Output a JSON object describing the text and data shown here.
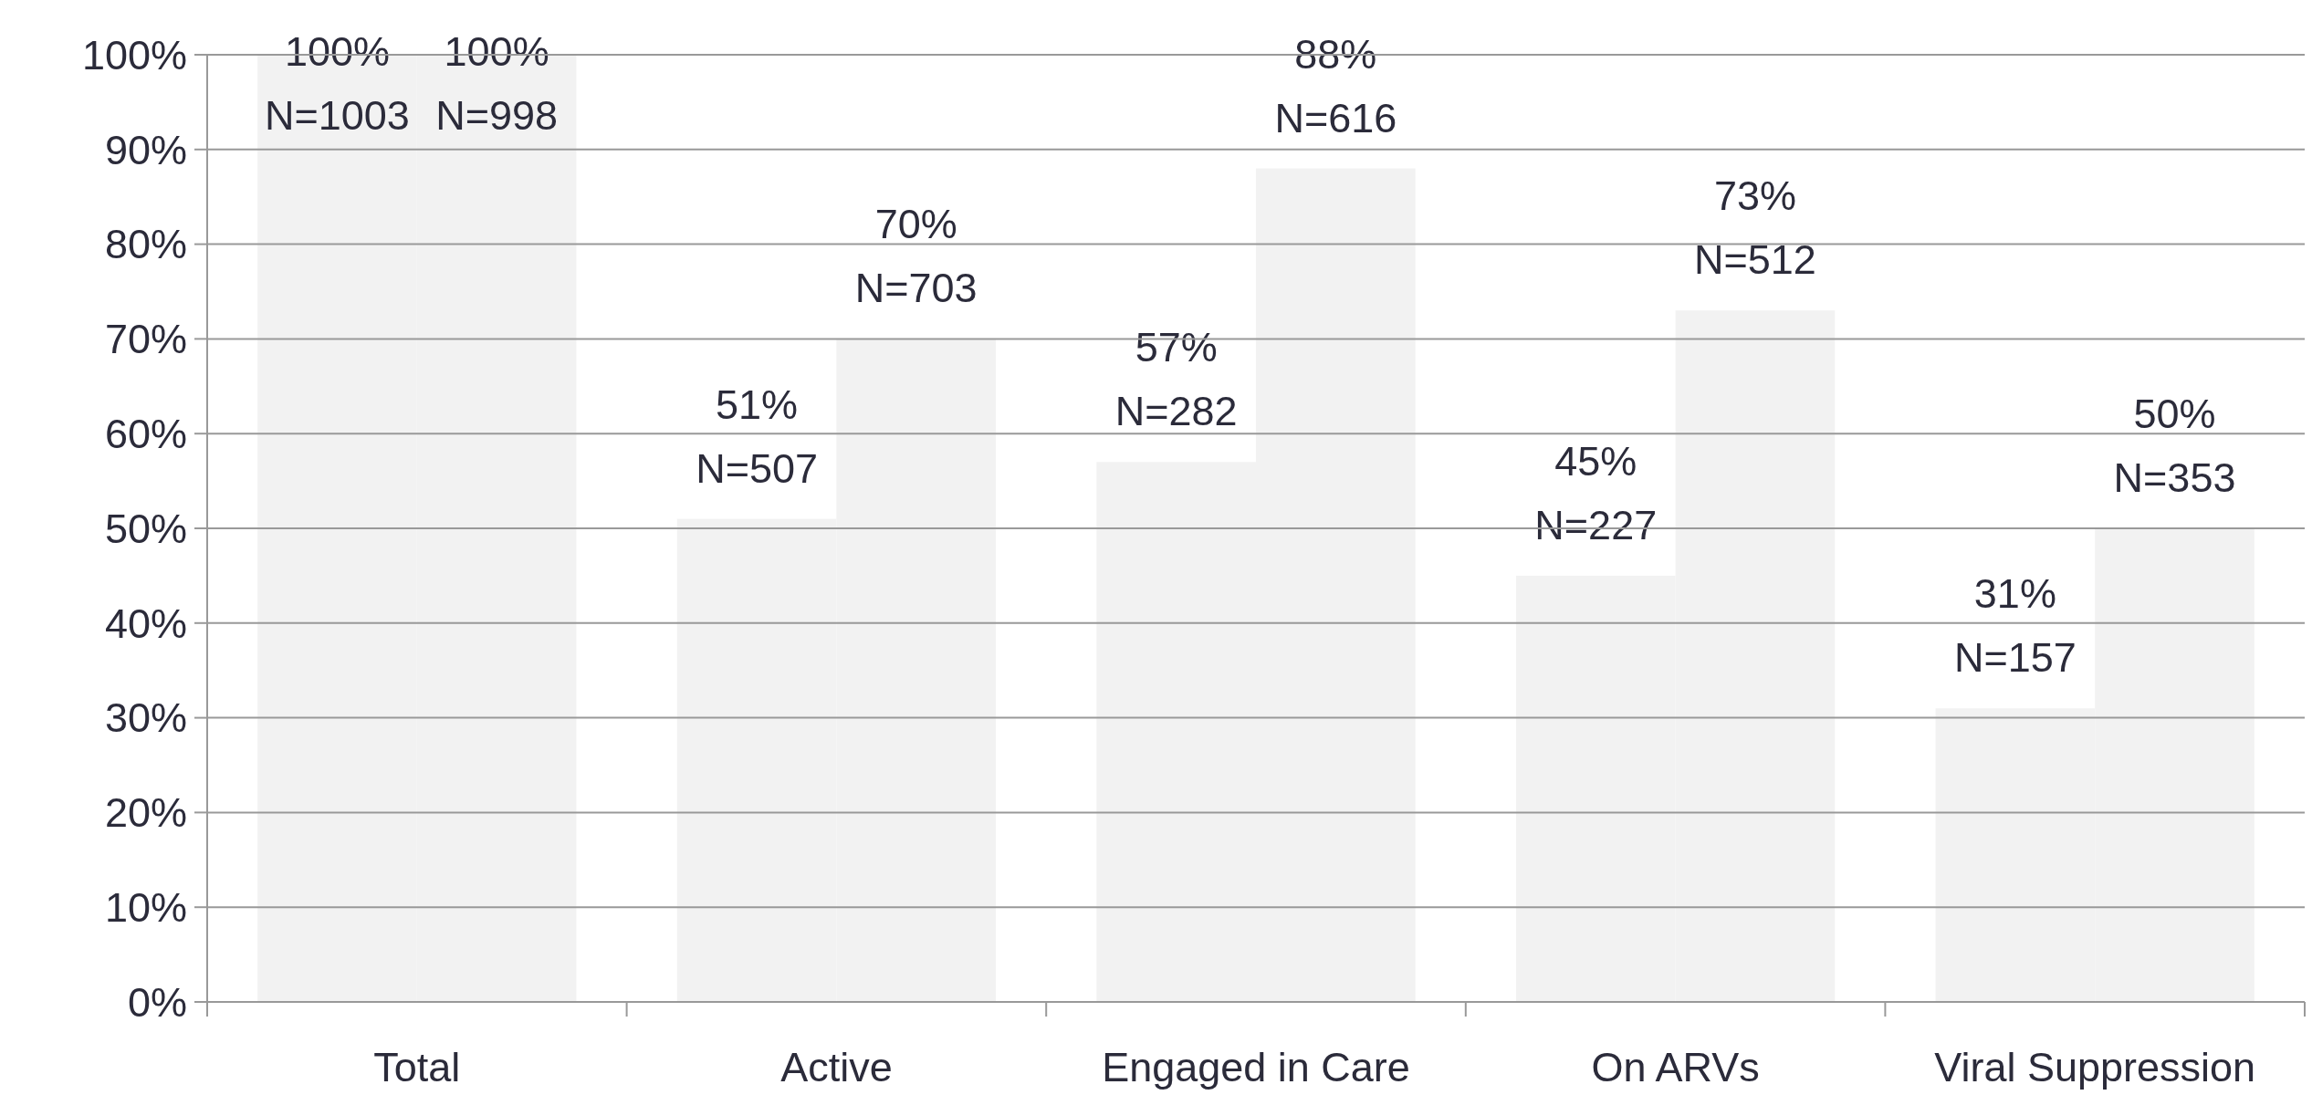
{
  "chart_data": {
    "type": "bar",
    "categories": [
      "Total",
      "Active",
      "Engaged in Care",
      "On ARVs",
      "Viral Suppression"
    ],
    "series": [
      {
        "color": "#f2f2f2",
        "values": [
          100,
          51,
          57,
          45,
          31
        ],
        "value_labels": [
          "100%\nN=1003",
          "51%\nN=507",
          "57%\nN=282",
          "45%\nN=227",
          "31%\nN=157"
        ]
      },
      {
        "color": "#f2f2f2",
        "values": [
          100,
          70,
          88,
          73,
          50
        ],
        "value_labels": [
          "100%\nN=998",
          "70%\nN=703",
          "88%\nN=616",
          "73%\nN=512",
          "50%\nN=353"
        ]
      }
    ],
    "ylim": [
      0,
      100
    ],
    "yticks": [
      {
        "value": 0,
        "label": "0%"
      },
      {
        "value": 10,
        "label": "10%"
      },
      {
        "value": 20,
        "label": "20%"
      },
      {
        "value": 30,
        "label": "30%"
      },
      {
        "value": 40,
        "label": "40%"
      },
      {
        "value": 50,
        "label": "50%"
      },
      {
        "value": 60,
        "label": "60%"
      },
      {
        "value": 70,
        "label": "70%"
      },
      {
        "value": 80,
        "label": "80%"
      },
      {
        "value": 90,
        "label": "90%"
      },
      {
        "value": 100,
        "label": "100%"
      }
    ],
    "grid": "y"
  }
}
